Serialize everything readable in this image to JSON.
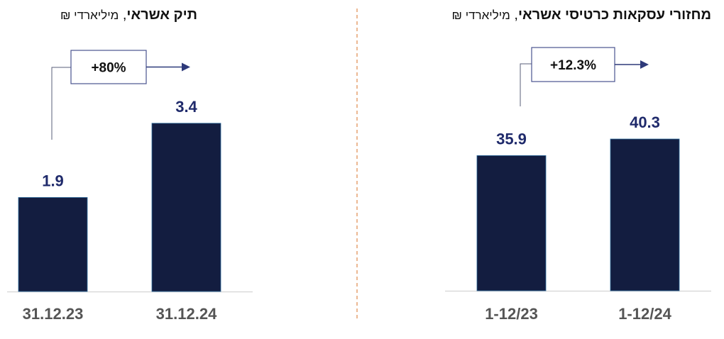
{
  "chart_data": [
    {
      "type": "bar",
      "title": "תיק אשראי",
      "subtitle": "מיליארדי ₪",
      "categories": [
        "31.12.23",
        "31.12.24"
      ],
      "values": [
        1.9,
        3.4
      ],
      "change_label": "+80%",
      "ylim": [
        0,
        4.3
      ],
      "color": "#131d40",
      "grid": false
    },
    {
      "type": "bar",
      "title": "מחזורי עסקאות כרטיסי אשראי",
      "subtitle": "מיליארדי ₪",
      "categories": [
        "1-12/23",
        "1-12/24"
      ],
      "values": [
        35.9,
        40.3
      ],
      "change_label": "+12.3%",
      "ylim": [
        0,
        56.5
      ],
      "color": "#131d40",
      "grid": false
    }
  ],
  "colors": {
    "bar": "#131d40",
    "value_label": "#1f2a6b",
    "category_label": "#555555",
    "divider": "#e08a4c",
    "callout": "#2e3a7a"
  }
}
